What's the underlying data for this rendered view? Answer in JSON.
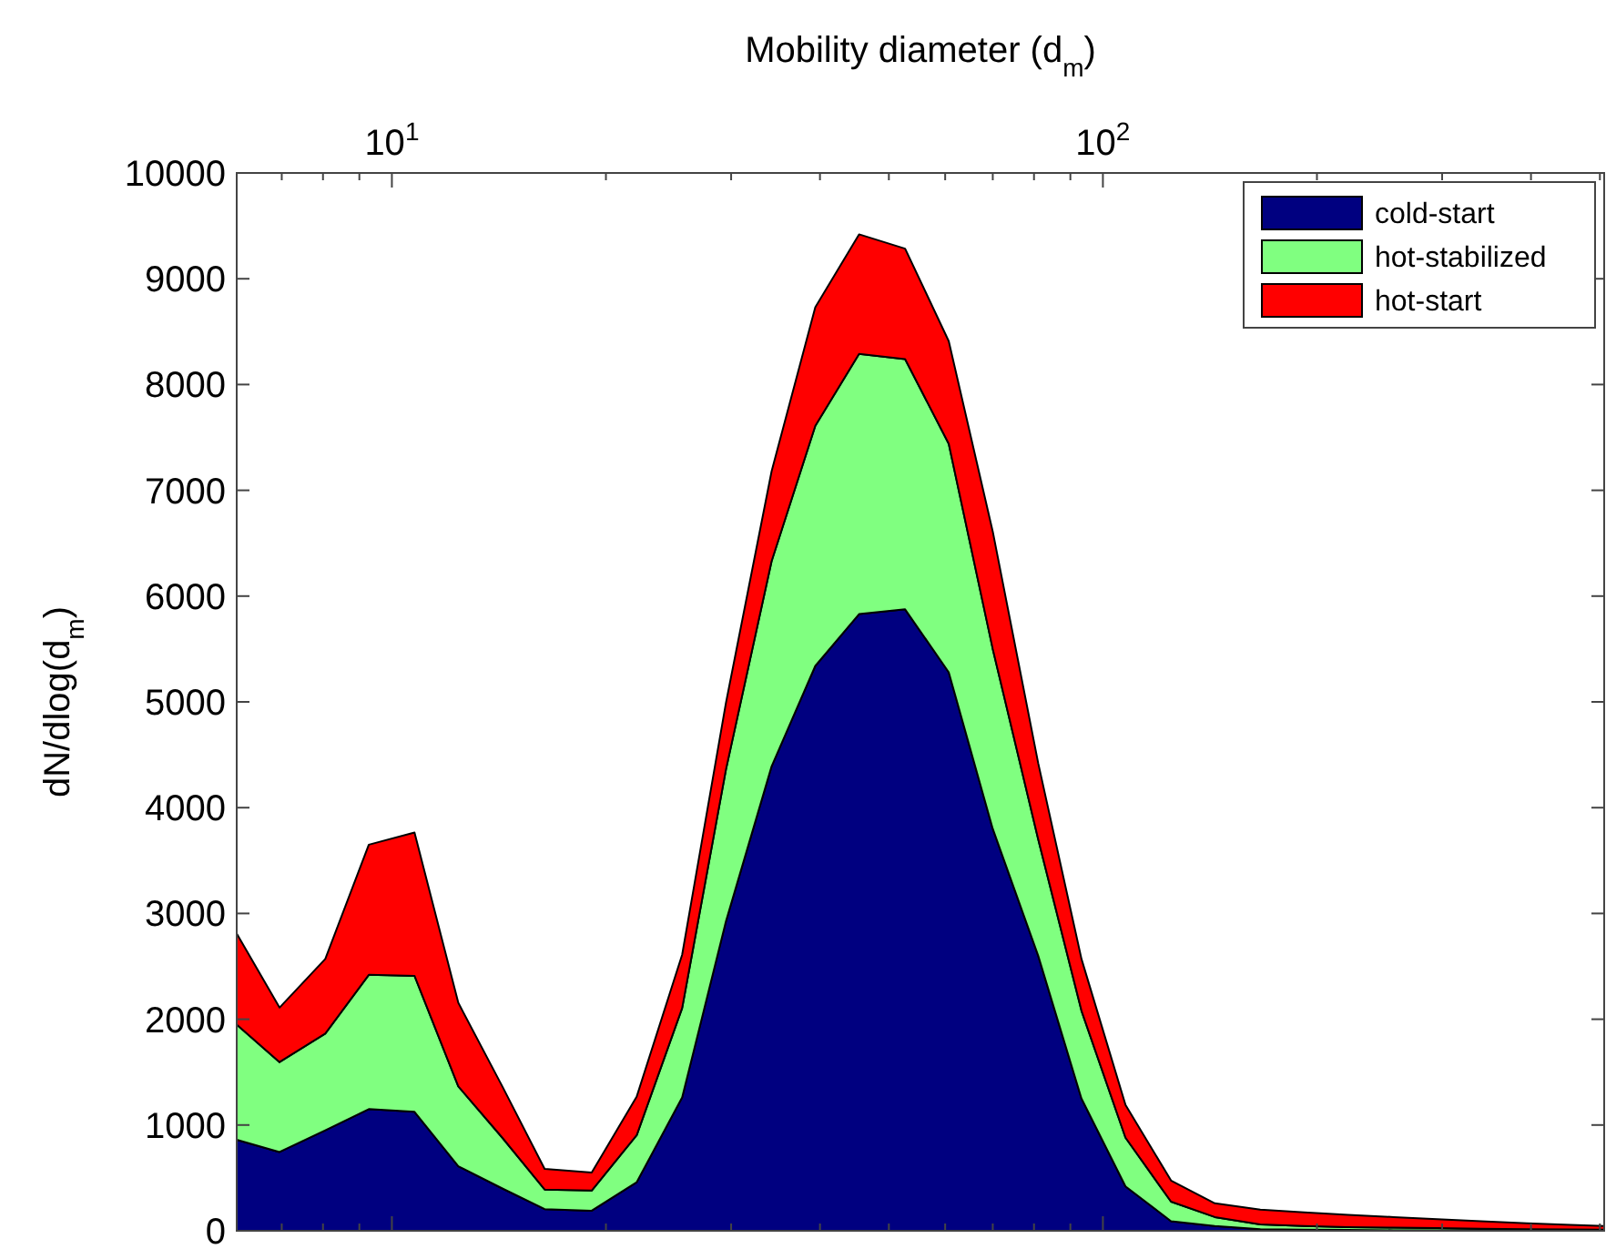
{
  "chart_data": {
    "type": "area",
    "stacked": true,
    "xlabel": "Mobility diameter (d$_{m}$)",
    "ylabel": "dN/dlog(d$_{m}$)",
    "log": "x",
    "legend": "top right",
    "grid": false,
    "x": [
      6.05,
      6.95,
      8.06,
      9.28,
      10.76,
      12.4,
      14.3,
      16.4,
      19.1,
      22.1,
      25.6,
      29.5,
      34.2,
      39.4,
      45.4,
      52.7,
      60.7,
      70.0,
      81.1,
      93.3,
      107.6,
      124.7,
      143.7,
      166.5,
      191.9,
      221.2,
      256.4,
      295.2,
      340.3,
      394.5,
      454.3,
      507
    ],
    "xlim": [
      6.05,
      507
    ],
    "xticks": [
      {
        "value": 7,
        "label": null
      },
      {
        "value": 8,
        "label": null
      },
      {
        "value": 9,
        "label": null
      },
      {
        "value": 10,
        "label": "10$^{1}$"
      },
      {
        "value": 20,
        "label": null
      },
      {
        "value": 30,
        "label": null
      },
      {
        "value": 40,
        "label": null
      },
      {
        "value": 50,
        "label": null
      },
      {
        "value": 60,
        "label": null
      },
      {
        "value": 70,
        "label": null
      },
      {
        "value": 80,
        "label": null
      },
      {
        "value": 90,
        "label": null
      },
      {
        "value": 100,
        "label": "10$^{2}$"
      },
      {
        "value": 200,
        "label": null
      },
      {
        "value": 300,
        "label": null
      },
      {
        "value": 400,
        "label": null
      },
      {
        "value": 500,
        "label": null
      }
    ],
    "ylim": [
      0,
      10000
    ],
    "yticks": [
      0,
      1000,
      2000,
      3000,
      4000,
      5000,
      6000,
      7000,
      8000,
      9000,
      10000
    ],
    "series": [
      {
        "name": "cold-start",
        "color": "#000080",
        "values": [
          860,
          745,
          950,
          1150,
          1125,
          610,
          400,
          205,
          190,
          460,
          1260,
          2925,
          4390,
          5340,
          5830,
          5875,
          5280,
          3800,
          2600,
          1250,
          420,
          90,
          45,
          15,
          10,
          8,
          5,
          4,
          3,
          2,
          2,
          1
        ]
      },
      {
        "name": "hot-stabilized",
        "color": "#80ff80",
        "values": [
          1090,
          850,
          915,
          1270,
          1285,
          755,
          480,
          185,
          190,
          445,
          845,
          1435,
          1940,
          2270,
          2460,
          2365,
          2160,
          1700,
          1100,
          830,
          460,
          185,
          85,
          45,
          35,
          27,
          25,
          21,
          17,
          13,
          10,
          9
        ]
      },
      {
        "name": "hot-start",
        "color": "#ff0000",
        "values": [
          860,
          515,
          705,
          1230,
          1355,
          790,
          485,
          195,
          170,
          365,
          505,
          630,
          850,
          1120,
          1130,
          1045,
          970,
          1110,
          720,
          490,
          310,
          200,
          130,
          140,
          130,
          115,
          100,
          85,
          70,
          55,
          43,
          35
        ]
      }
    ]
  }
}
